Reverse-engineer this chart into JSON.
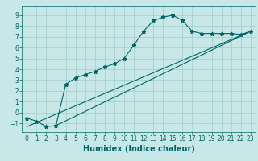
{
  "bg_color": "#c8e8e8",
  "grid_color": "#a8d0d0",
  "line_color": "#006666",
  "marker_color": "#006666",
  "xlabel": "Humidex (Indice chaleur)",
  "xlim": [
    -0.5,
    23.5
  ],
  "ylim": [
    -1.8,
    9.8
  ],
  "xticks": [
    0,
    1,
    2,
    3,
    4,
    5,
    6,
    7,
    8,
    9,
    10,
    11,
    12,
    13,
    14,
    15,
    16,
    17,
    18,
    19,
    20,
    21,
    22,
    23
  ],
  "yticks": [
    -1,
    0,
    1,
    2,
    3,
    4,
    5,
    6,
    7,
    8,
    9
  ],
  "curve1_x": [
    0,
    1,
    2,
    3,
    4,
    5,
    6,
    7,
    8,
    9,
    10,
    11,
    12,
    13,
    14,
    15,
    16,
    17,
    18,
    19,
    20,
    21,
    22,
    23
  ],
  "curve1_y": [
    -0.5,
    -0.8,
    -1.3,
    -1.2,
    2.6,
    3.2,
    3.5,
    3.8,
    4.2,
    4.5,
    5.0,
    6.2,
    7.5,
    8.5,
    8.8,
    9.0,
    8.5,
    7.5,
    7.3,
    7.3,
    7.3,
    7.3,
    7.2,
    7.5
  ],
  "line2_x": [
    0,
    23
  ],
  "line2_y": [
    -1.3,
    7.5
  ],
  "line3_x": [
    3,
    23
  ],
  "line3_y": [
    -1.2,
    7.5
  ],
  "axis_fontsize": 6,
  "tick_fontsize": 5.5,
  "xlabel_fontsize": 7
}
